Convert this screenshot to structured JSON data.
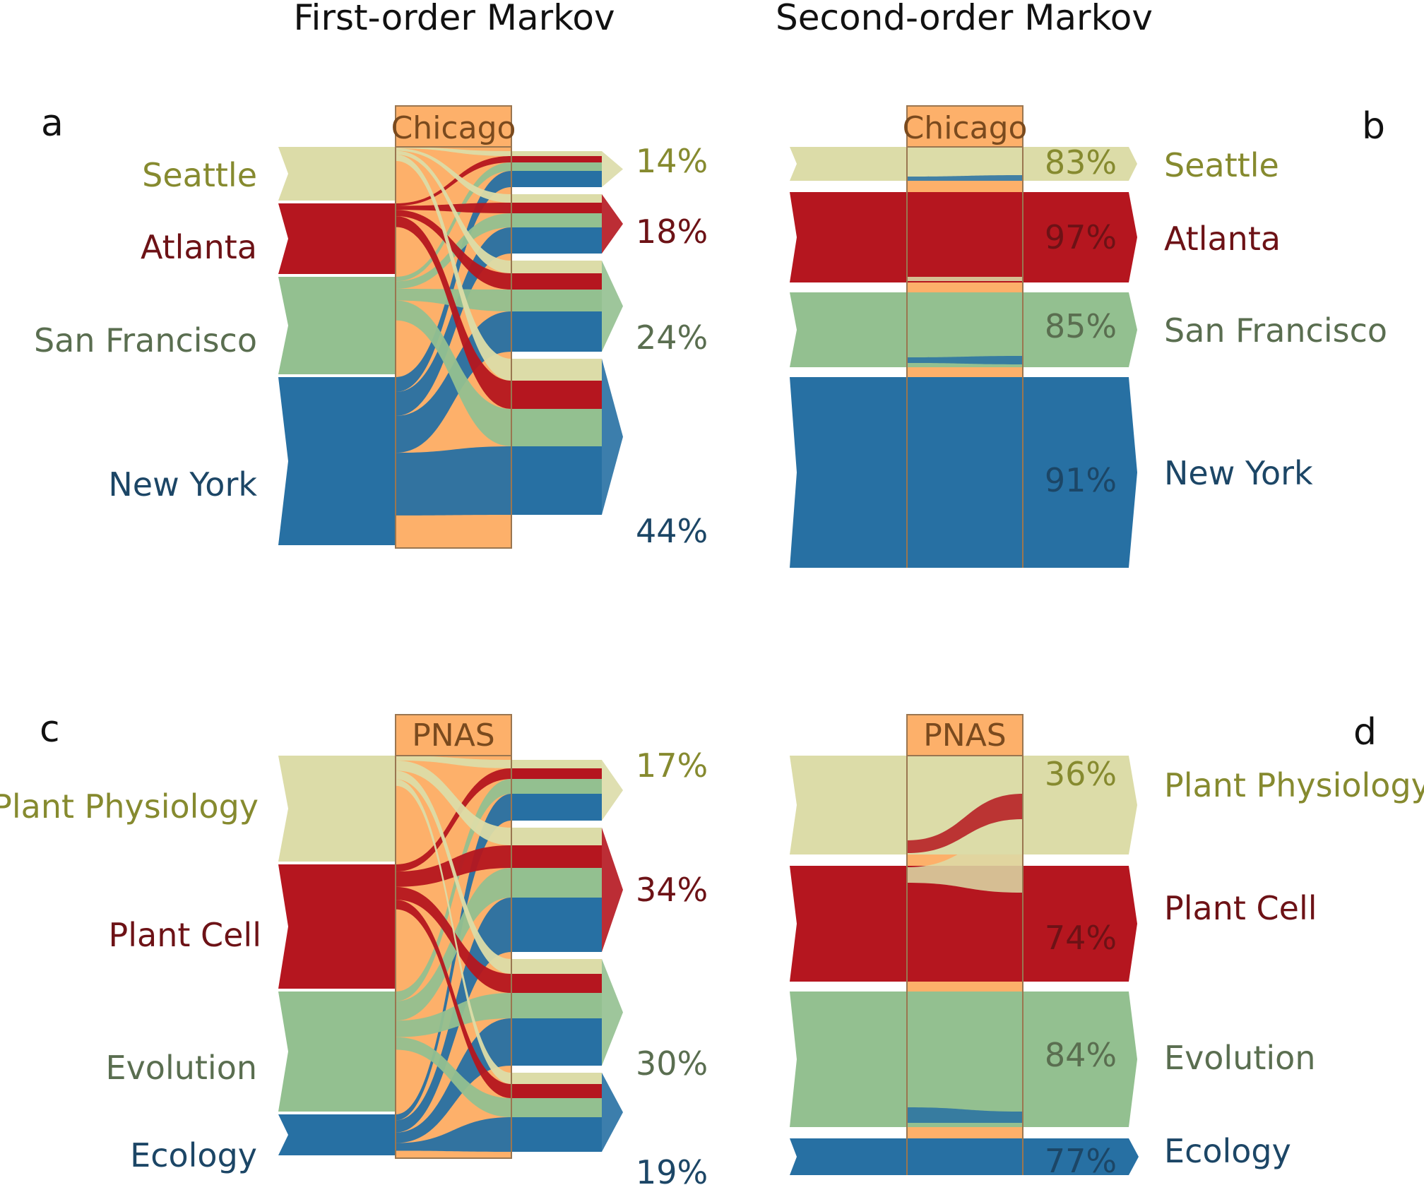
{
  "titles": {
    "first_order": "First-order Markov",
    "second_order": "Second-order Markov"
  },
  "colors": {
    "beige": "#dcdca8",
    "red": "#b5161f",
    "green": "#93c090",
    "blue": "#2770a3",
    "hub": "#fdb06a",
    "hub_border": "#9a7650"
  },
  "label_colors": {
    "beige": "#868a2f",
    "red": "#6d1216",
    "green": "#5a6e50",
    "blue": "#1c4666"
  },
  "panels": [
    {
      "letter": "a",
      "order": "first",
      "hub": "Chicago",
      "nodes": [
        {
          "label": "Seattle",
          "color": "beige"
        },
        {
          "label": "Atlanta",
          "color": "red"
        },
        {
          "label": "San Francisco",
          "color": "green"
        },
        {
          "label": "New York",
          "color": "blue"
        }
      ],
      "out_percent": [
        "14%",
        "18%",
        "24%",
        "44%"
      ]
    },
    {
      "letter": "b",
      "order": "second",
      "hub": "Chicago",
      "nodes": [
        {
          "label": "Seattle",
          "color": "beige",
          "percent": "83%"
        },
        {
          "label": "Atlanta",
          "color": "red",
          "percent": "97%"
        },
        {
          "label": "San Francisco",
          "color": "green",
          "percent": "85%"
        },
        {
          "label": "New York",
          "color": "blue",
          "percent": "91%"
        }
      ]
    },
    {
      "letter": "c",
      "order": "first",
      "hub": "PNAS",
      "nodes": [
        {
          "label": "Plant Physiology",
          "color": "beige"
        },
        {
          "label": "Plant Cell",
          "color": "red"
        },
        {
          "label": "Evolution",
          "color": "green"
        },
        {
          "label": "Ecology",
          "color": "blue"
        }
      ],
      "out_percent": [
        "17%",
        "34%",
        "30%",
        "19%"
      ]
    },
    {
      "letter": "d",
      "order": "second",
      "hub": "PNAS",
      "nodes": [
        {
          "label": "Plant Physiology",
          "color": "beige",
          "percent": "36%"
        },
        {
          "label": "Plant Cell",
          "color": "red",
          "percent": "74%"
        },
        {
          "label": "Evolution",
          "color": "green",
          "percent": "84%"
        },
        {
          "label": "Ecology",
          "color": "blue",
          "percent": "77%"
        }
      ]
    }
  ]
}
